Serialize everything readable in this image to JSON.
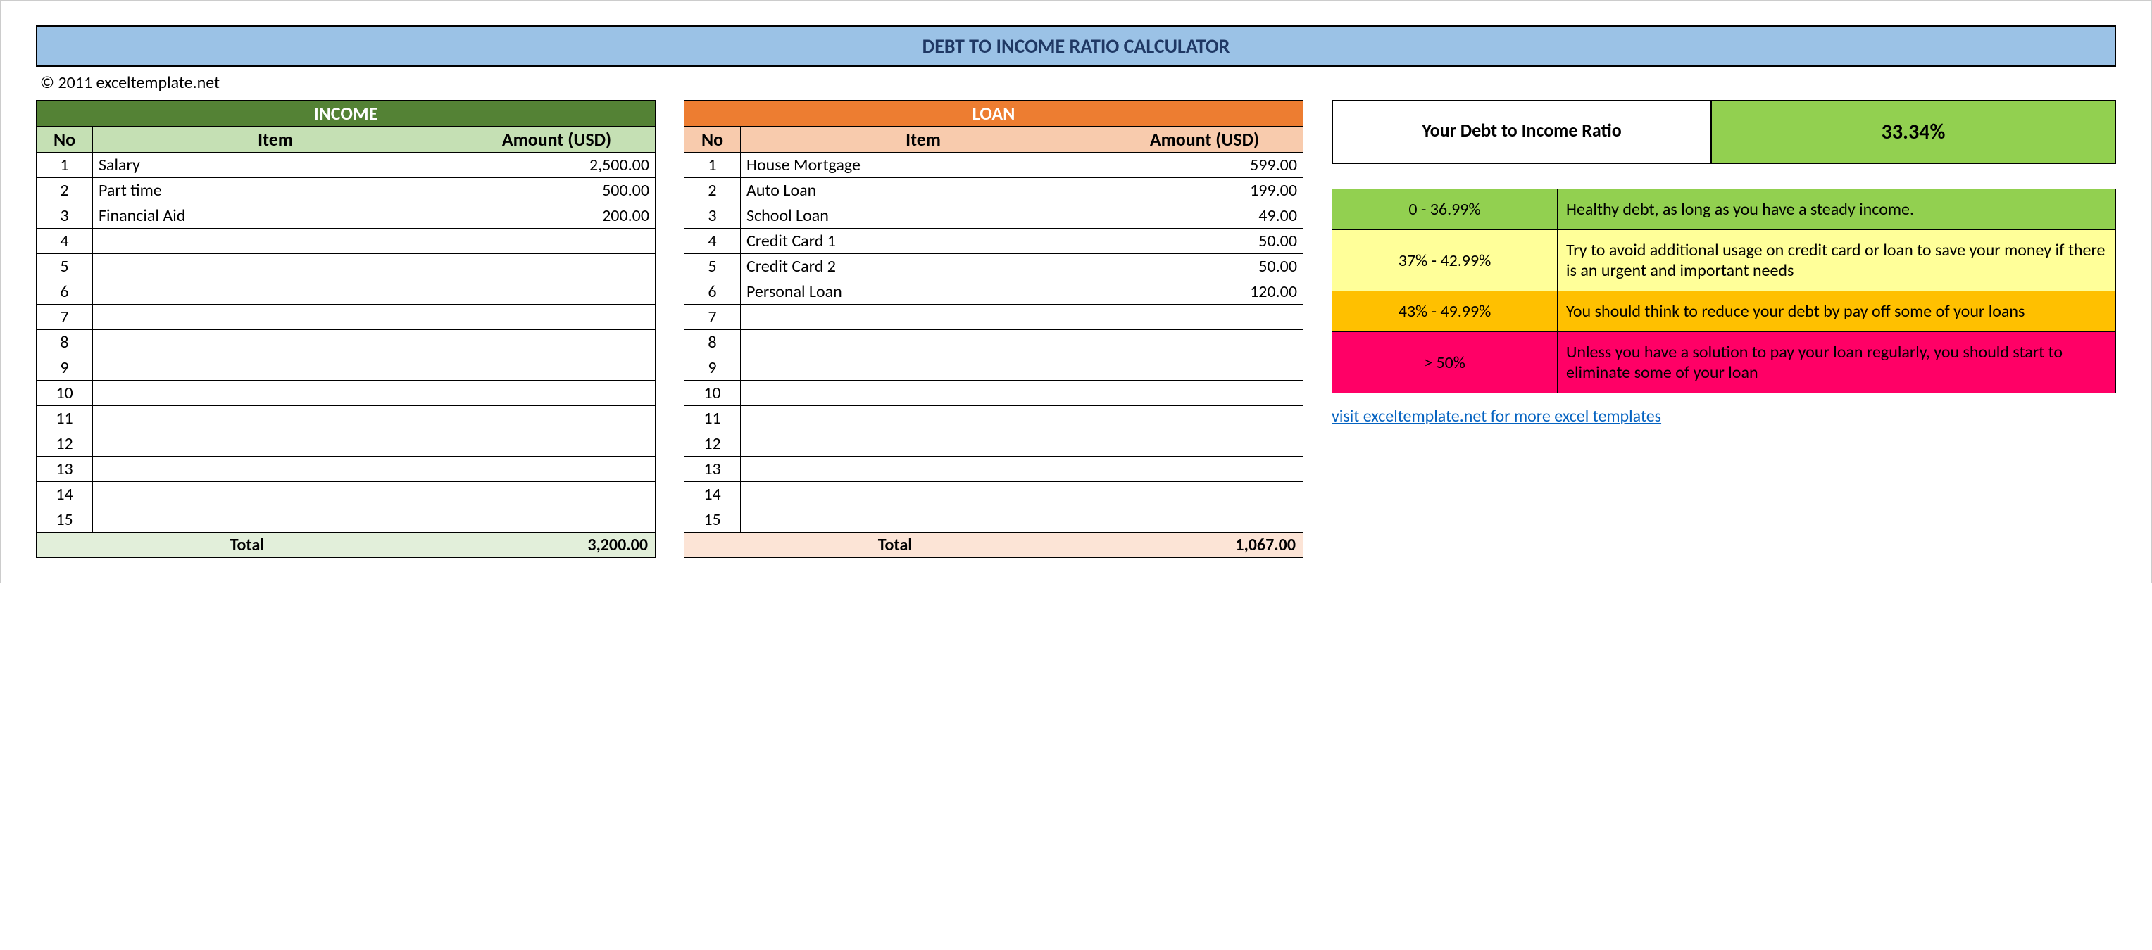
{
  "title": "DEBT TO INCOME RATIO CALCULATOR",
  "title_bg": "#9bc2e6",
  "copyright": "© 2011 exceltemplate.net",
  "income": {
    "header_text": "INCOME",
    "header_bg": "#548235",
    "header_fg": "#ffffff",
    "subheader_bg": "#c5e0b4",
    "columns": {
      "no": "No",
      "item": "Item",
      "amount": "Amount (USD)"
    },
    "rows": [
      {
        "no": "1",
        "item": "Salary",
        "amount": "2,500.00"
      },
      {
        "no": "2",
        "item": "Part time",
        "amount": "500.00"
      },
      {
        "no": "3",
        "item": "Financial Aid",
        "amount": "200.00"
      },
      {
        "no": "4",
        "item": "",
        "amount": ""
      },
      {
        "no": "5",
        "item": "",
        "amount": ""
      },
      {
        "no": "6",
        "item": "",
        "amount": ""
      },
      {
        "no": "7",
        "item": "",
        "amount": ""
      },
      {
        "no": "8",
        "item": "",
        "amount": ""
      },
      {
        "no": "9",
        "item": "",
        "amount": ""
      },
      {
        "no": "10",
        "item": "",
        "amount": ""
      },
      {
        "no": "11",
        "item": "",
        "amount": ""
      },
      {
        "no": "12",
        "item": "",
        "amount": ""
      },
      {
        "no": "13",
        "item": "",
        "amount": ""
      },
      {
        "no": "14",
        "item": "",
        "amount": ""
      },
      {
        "no": "15",
        "item": "",
        "amount": ""
      }
    ],
    "total_label": "Total",
    "total_amount": "3,200.00",
    "total_bg": "#e2efda"
  },
  "loan": {
    "header_text": "LOAN",
    "header_bg": "#ed7d31",
    "header_fg": "#ffffff",
    "subheader_bg": "#f8cbad",
    "columns": {
      "no": "No",
      "item": "Item",
      "amount": "Amount (USD)"
    },
    "rows": [
      {
        "no": "1",
        "item": "House Mortgage",
        "amount": "599.00"
      },
      {
        "no": "2",
        "item": "Auto Loan",
        "amount": "199.00"
      },
      {
        "no": "3",
        "item": "School Loan",
        "amount": "49.00"
      },
      {
        "no": "4",
        "item": "Credit Card 1",
        "amount": "50.00"
      },
      {
        "no": "5",
        "item": "Credit Card 2",
        "amount": "50.00"
      },
      {
        "no": "6",
        "item": "Personal Loan",
        "amount": "120.00"
      },
      {
        "no": "7",
        "item": "",
        "amount": ""
      },
      {
        "no": "8",
        "item": "",
        "amount": ""
      },
      {
        "no": "9",
        "item": "",
        "amount": ""
      },
      {
        "no": "10",
        "item": "",
        "amount": ""
      },
      {
        "no": "11",
        "item": "",
        "amount": ""
      },
      {
        "no": "12",
        "item": "",
        "amount": ""
      },
      {
        "no": "13",
        "item": "",
        "amount": ""
      },
      {
        "no": "14",
        "item": "",
        "amount": ""
      },
      {
        "no": "15",
        "item": "",
        "amount": ""
      }
    ],
    "total_label": "Total",
    "total_amount": "1,067.00",
    "total_bg": "#fce4d6"
  },
  "result": {
    "label": "Your Debt to Income Ratio",
    "value": "33.34%",
    "value_bg": "#92d050"
  },
  "legend": [
    {
      "range": "0 - 36.99%",
      "desc": "Healthy debt, as long as you have a steady income.",
      "bg": "#92d050"
    },
    {
      "range": "37% - 42.99%",
      "desc": "Try to avoid additional usage on credit card or loan to save your money if there is an urgent and important needs",
      "bg": "#ffff99"
    },
    {
      "range": "43% - 49.99%",
      "desc": "You should think to reduce your debt by pay off some of your loans",
      "bg": "#ffc000"
    },
    {
      "range": "> 50%",
      "desc": "Unless you have a solution to pay your loan regularly, you should start to eliminate some of your loan",
      "bg": "#ff0066"
    }
  ],
  "link_text": "visit exceltemplate.net for more excel templates"
}
